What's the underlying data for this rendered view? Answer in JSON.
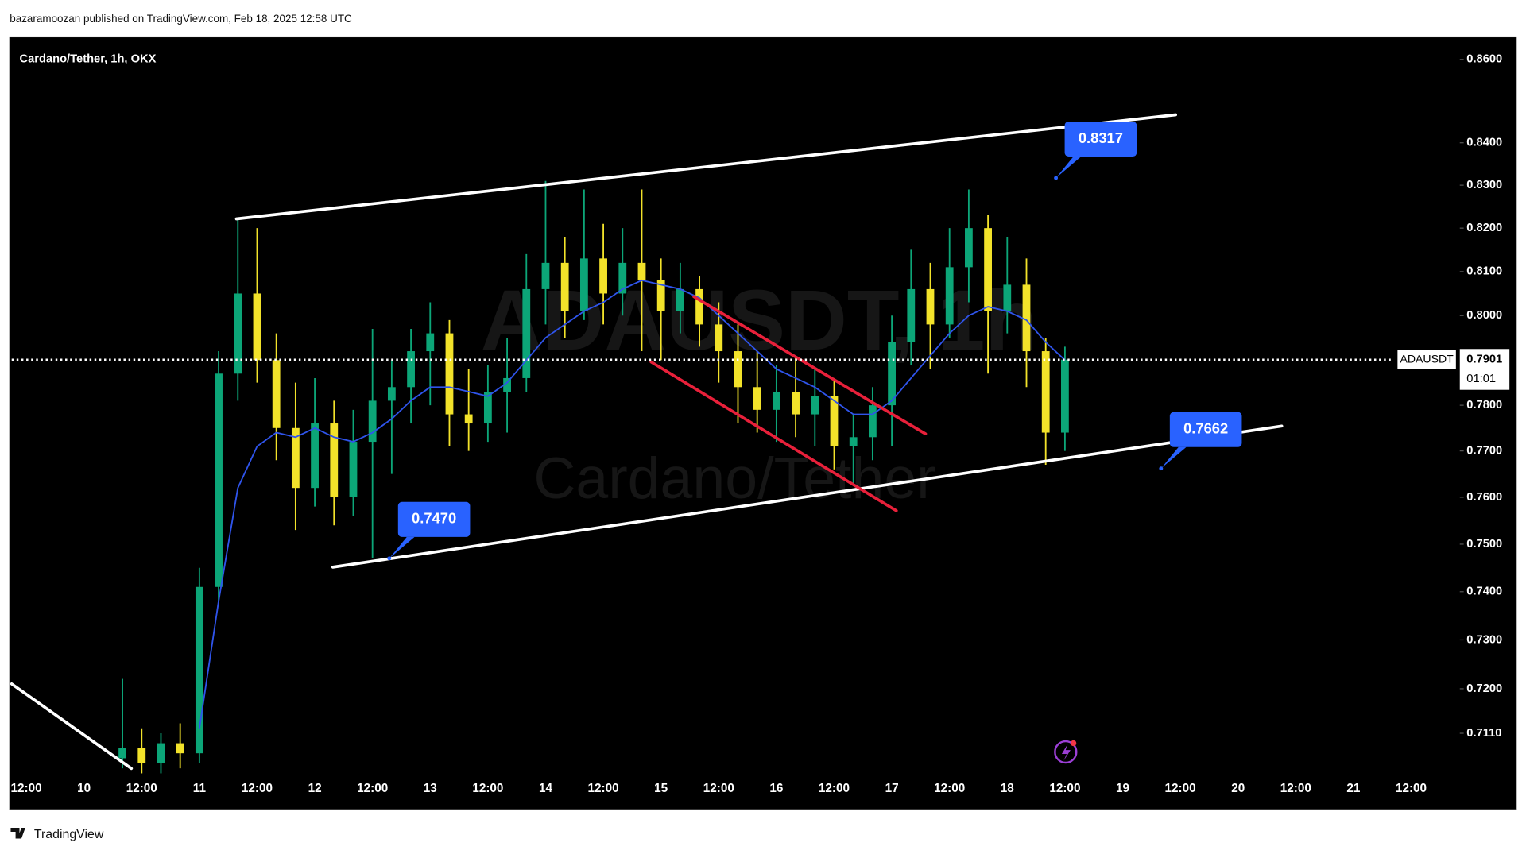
{
  "header": {
    "byline": "bazaramoozan published on TradingView.com, Feb 18, 2025 12:58 UTC",
    "brand": "TradingView"
  },
  "chart_data": {
    "type": "candlestick",
    "title": "Cardano/Tether, 1h, OKX",
    "watermark": {
      "symbol": "ADAUSDT, 1h",
      "name": "Cardano/Tether"
    },
    "log_scale": true,
    "up_color": "#0ca678",
    "down_color": "#f2e22a",
    "ma_color": "#2f54eb",
    "ylim": [
      0.703,
      0.865
    ],
    "yticks": [
      {
        "value": 0.711,
        "label": "0.7110"
      },
      {
        "value": 0.72,
        "label": "0.7200"
      },
      {
        "value": 0.73,
        "label": "0.7300"
      },
      {
        "value": 0.74,
        "label": "0.7400"
      },
      {
        "value": 0.75,
        "label": "0.7500"
      },
      {
        "value": 0.76,
        "label": "0.7600"
      },
      {
        "value": 0.77,
        "label": "0.7700"
      },
      {
        "value": 0.78,
        "label": "0.7800"
      },
      {
        "value": 0.8,
        "label": "0.8000"
      },
      {
        "value": 0.81,
        "label": "0.8100"
      },
      {
        "value": 0.82,
        "label": "0.8200"
      },
      {
        "value": 0.83,
        "label": "0.8300"
      },
      {
        "value": 0.84,
        "label": "0.8400"
      },
      {
        "value": 0.86,
        "label": "0.8600"
      }
    ],
    "categories": [
      "12:00",
      null,
      null,
      "10",
      null,
      null,
      "12:00",
      null,
      null,
      "11",
      null,
      null,
      "12:00",
      null,
      null,
      "12",
      null,
      null,
      "12:00",
      null,
      null,
      "13",
      null,
      null,
      "12:00",
      null,
      null,
      "14",
      null,
      null,
      "12:00",
      null,
      null,
      "15",
      null,
      null,
      "12:00",
      null,
      null,
      "16",
      null,
      null,
      "12:00",
      null,
      null,
      "17",
      null,
      null,
      "12:00",
      null,
      null,
      "18",
      null,
      null,
      "12:00",
      null,
      null,
      "19",
      null,
      null,
      "12:00",
      null,
      null,
      "20",
      null,
      null,
      "12:00",
      null,
      null,
      "21",
      null,
      null,
      "12:00"
    ],
    "open": [
      null,
      null,
      null,
      null,
      null,
      0.706,
      0.708,
      0.705,
      0.709,
      0.707,
      0.741,
      0.787,
      0.805,
      0.79,
      0.775,
      0.762,
      0.776,
      0.76,
      0.772,
      0.781,
      0.784,
      0.792,
      0.796,
      0.778,
      0.776,
      0.783,
      0.786,
      0.806,
      0.812,
      0.801,
      0.813,
      0.805,
      0.812,
      0.808,
      0.801,
      0.806,
      0.798,
      0.792,
      0.784,
      0.779,
      0.783,
      0.778,
      0.782,
      0.771,
      0.773,
      0.78,
      0.794,
      0.806,
      0.798,
      0.811,
      0.82,
      0.801,
      0.807,
      0.792,
      0.774,
      null,
      null,
      null,
      null,
      null,
      null,
      null,
      null,
      null,
      null,
      null,
      null,
      null,
      null,
      null,
      null,
      null,
      null
    ],
    "high": [
      null,
      null,
      null,
      null,
      null,
      0.722,
      0.712,
      0.711,
      0.713,
      0.745,
      0.792,
      0.822,
      0.82,
      0.796,
      0.785,
      0.786,
      0.781,
      0.779,
      0.797,
      0.79,
      0.797,
      0.803,
      0.799,
      0.788,
      0.789,
      0.795,
      0.814,
      0.831,
      0.818,
      0.829,
      0.821,
      0.82,
      0.829,
      0.813,
      0.812,
      0.809,
      0.803,
      0.798,
      0.792,
      0.789,
      0.791,
      0.788,
      0.786,
      0.778,
      0.784,
      0.8,
      0.815,
      0.812,
      0.82,
      0.829,
      0.823,
      0.818,
      0.813,
      0.795,
      0.793,
      null,
      null,
      null,
      null,
      null,
      null,
      null,
      null,
      null,
      null,
      null,
      null,
      null,
      null,
      null,
      null,
      null,
      null
    ],
    "low": [
      null,
      null,
      null,
      null,
      null,
      0.704,
      0.703,
      0.703,
      0.704,
      0.705,
      0.738,
      0.781,
      0.785,
      0.768,
      0.753,
      0.758,
      0.754,
      0.756,
      0.747,
      0.765,
      0.776,
      0.78,
      0.771,
      0.77,
      0.772,
      0.774,
      0.783,
      0.798,
      0.795,
      0.799,
      0.798,
      0.8,
      0.792,
      0.79,
      0.796,
      0.793,
      0.785,
      0.776,
      0.774,
      0.772,
      0.773,
      0.771,
      0.766,
      0.763,
      0.768,
      0.771,
      0.789,
      0.788,
      0.795,
      0.803,
      0.787,
      0.796,
      0.784,
      0.767,
      0.77,
      null,
      null,
      null,
      null,
      null,
      null,
      null,
      null,
      null,
      null,
      null,
      null,
      null,
      null,
      null,
      null,
      null,
      null
    ],
    "close": [
      null,
      null,
      null,
      null,
      null,
      0.708,
      0.705,
      0.709,
      0.707,
      0.741,
      0.787,
      0.805,
      0.79,
      0.775,
      0.762,
      0.776,
      0.76,
      0.772,
      0.781,
      0.784,
      0.792,
      0.796,
      0.778,
      0.776,
      0.783,
      0.786,
      0.806,
      0.812,
      0.801,
      0.813,
      0.805,
      0.812,
      0.808,
      0.801,
      0.806,
      0.798,
      0.792,
      0.784,
      0.779,
      0.783,
      0.778,
      0.782,
      0.771,
      0.773,
      0.78,
      0.794,
      0.806,
      0.798,
      0.811,
      0.82,
      0.801,
      0.807,
      0.792,
      0.774,
      0.7901,
      null,
      null,
      null,
      null,
      null,
      null,
      null,
      null,
      null,
      null,
      null,
      null,
      null,
      null,
      null,
      null,
      null,
      null
    ],
    "ma": [
      null,
      null,
      null,
      null,
      null,
      null,
      null,
      null,
      null,
      0.712,
      0.738,
      0.762,
      0.771,
      0.774,
      0.773,
      0.775,
      0.773,
      0.772,
      0.774,
      0.777,
      0.781,
      0.784,
      0.784,
      0.783,
      0.782,
      0.785,
      0.79,
      0.795,
      0.798,
      0.801,
      0.803,
      0.806,
      0.808,
      0.807,
      0.806,
      0.804,
      0.8,
      0.796,
      0.792,
      0.788,
      0.786,
      0.784,
      0.781,
      0.778,
      0.778,
      0.781,
      0.786,
      0.791,
      0.796,
      0.8,
      0.802,
      0.801,
      0.799,
      0.794,
      0.79,
      null,
      null,
      null,
      null,
      null,
      null,
      null,
      null,
      null,
      null,
      null,
      null,
      null,
      null,
      null,
      null,
      null,
      null
    ],
    "price_label": {
      "symbol": "ADAUSDT",
      "price": 0.7901,
      "countdown": "01:01"
    },
    "annotations": [
      {
        "value": 0.8317,
        "label": "0.8317"
      },
      {
        "value": 0.7662,
        "label": "0.7662"
      },
      {
        "value": 0.747,
        "label": "0.7470"
      }
    ]
  }
}
